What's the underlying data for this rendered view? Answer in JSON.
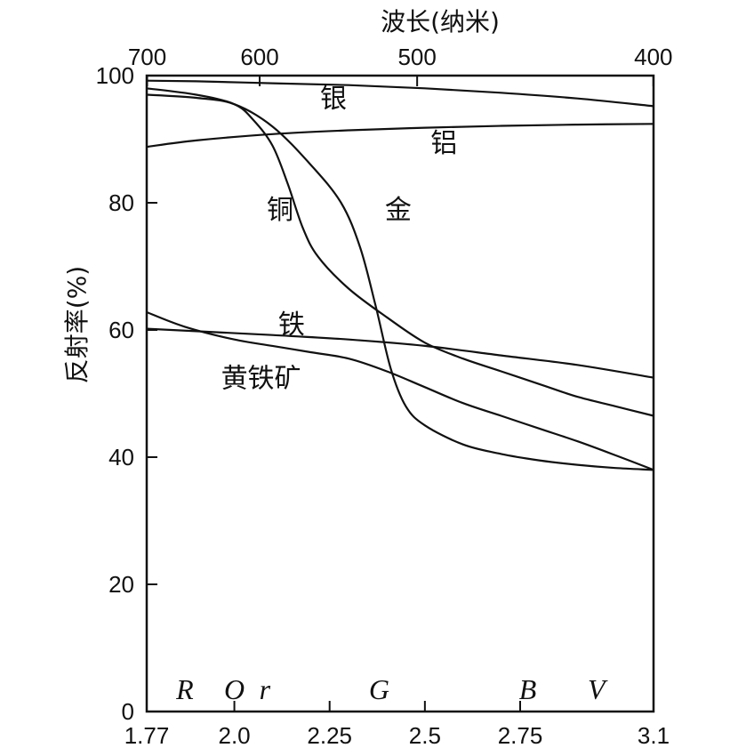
{
  "chart_data": {
    "type": "line",
    "title": "",
    "top_axis": {
      "label": "波长(纳米)",
      "ticks": [
        700,
        600,
        500,
        400
      ]
    },
    "x_axis": {
      "label": "",
      "ticks": [
        "1.77",
        "2.0",
        "2.25",
        "2.5",
        "2.75",
        "3.1"
      ],
      "xlim": [
        1.77,
        3.1
      ]
    },
    "y_axis": {
      "label": "反射率(%)",
      "ticks": [
        0,
        20,
        40,
        60,
        80,
        100
      ],
      "ylim": [
        0,
        100
      ]
    },
    "color_bands": [
      {
        "letter": "R",
        "x": 1.87
      },
      {
        "letter": "O",
        "x": 2.0
      },
      {
        "letter": "r",
        "x": 2.08
      },
      {
        "letter": "G",
        "x": 2.38
      },
      {
        "letter": "B",
        "x": 2.77
      },
      {
        "letter": "V",
        "x": 2.95
      }
    ],
    "series": [
      {
        "name": "银",
        "label_at": [
          2.26,
          96.5
        ],
        "x": [
          1.77,
          1.9,
          2.1,
          2.3,
          2.5,
          2.7,
          2.9,
          3.1
        ],
        "y": [
          99.2,
          99.1,
          98.8,
          98.5,
          98.0,
          97.3,
          96.4,
          95.2
        ]
      },
      {
        "name": "铝",
        "label_at": [
          2.55,
          89.5
        ],
        "x": [
          1.77,
          1.9,
          2.1,
          2.3,
          2.5,
          2.7,
          2.9,
          3.1
        ],
        "y": [
          88.8,
          89.8,
          90.8,
          91.4,
          91.8,
          92.1,
          92.3,
          92.4
        ]
      },
      {
        "name": "铜",
        "label_at": [
          2.12,
          79
        ],
        "x": [
          1.77,
          1.9,
          2.0,
          2.05,
          2.1,
          2.14,
          2.18,
          2.22,
          2.3,
          2.4,
          2.5,
          2.6,
          2.7,
          2.8,
          2.9,
          3.0,
          3.1
        ],
        "y": [
          98.0,
          97.0,
          95.5,
          93.0,
          89.0,
          83.0,
          76.0,
          71.5,
          66.5,
          62.0,
          58.0,
          55.5,
          53.5,
          51.5,
          49.5,
          48.0,
          46.5
        ]
      },
      {
        "name": "金",
        "label_at": [
          2.43,
          79
        ],
        "x": [
          1.77,
          1.9,
          2.0,
          2.1,
          2.2,
          2.28,
          2.33,
          2.37,
          2.41,
          2.45,
          2.5,
          2.6,
          2.7,
          2.8,
          2.9,
          3.0,
          3.1
        ],
        "y": [
          97.0,
          96.5,
          95.5,
          92.0,
          86.0,
          80.0,
          73.0,
          64.0,
          54.0,
          48.0,
          45.0,
          42.0,
          40.5,
          39.5,
          38.8,
          38.3,
          38.0
        ]
      },
      {
        "name": "铁",
        "label_at": [
          2.15,
          61
        ],
        "x": [
          1.77,
          1.9,
          2.1,
          2.3,
          2.5,
          2.7,
          2.9,
          3.1
        ],
        "y": [
          60.2,
          59.8,
          59.2,
          58.5,
          57.5,
          56.0,
          54.5,
          52.5
        ]
      },
      {
        "name": "黄铁矿",
        "label_at": [
          2.07,
          52.5
        ],
        "x": [
          1.77,
          1.87,
          2.0,
          2.1,
          2.2,
          2.3,
          2.4,
          2.5,
          2.6,
          2.7,
          2.8,
          2.9,
          3.0,
          3.1
        ],
        "y": [
          62.8,
          60.5,
          58.5,
          57.5,
          56.5,
          55.5,
          53.5,
          51.0,
          48.5,
          46.5,
          44.5,
          42.5,
          40.3,
          38.0
        ]
      }
    ],
    "grid": false,
    "legend": "none"
  }
}
